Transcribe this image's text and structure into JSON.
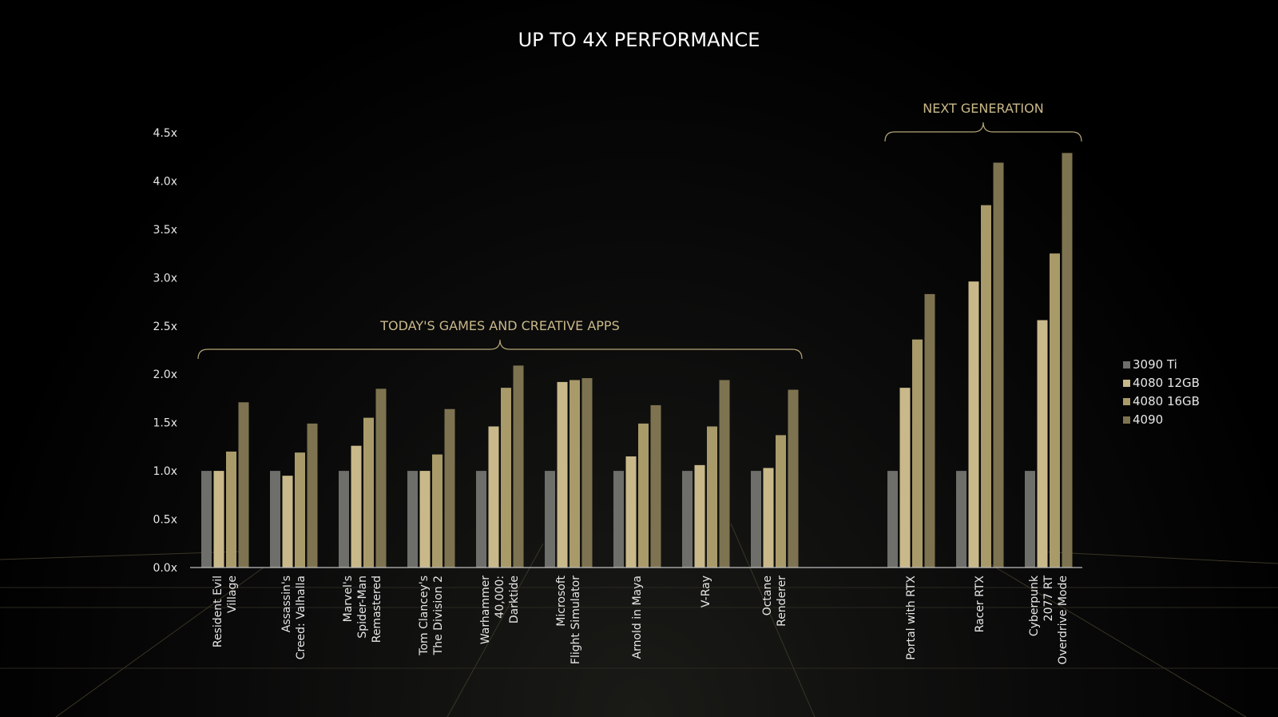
{
  "chart_data": {
    "type": "bar",
    "title": "UP TO 4X PERFORMANCE",
    "xlabel": "",
    "ylabel": "",
    "ylim": [
      0,
      4.5
    ],
    "y_ticks": [
      "0.0x",
      "0.5x",
      "1.0x",
      "1.5x",
      "2.0x",
      "2.5x",
      "3.0x",
      "3.5x",
      "4.0x",
      "4.5x"
    ],
    "legend_position": "right",
    "groups": [
      {
        "label": "TODAY'S GAMES AND CREATIVE APPS",
        "categories": [
          0,
          1,
          2,
          3,
          4,
          5,
          6,
          7,
          8
        ]
      },
      {
        "label": "NEXT GENERATION",
        "categories": [
          9,
          10,
          11
        ]
      }
    ],
    "categories": [
      [
        "Resident Evil",
        "Village"
      ],
      [
        "Assassin's",
        "Creed: Valhalla"
      ],
      [
        "Marvel's",
        "Spider-Man",
        "Remastered"
      ],
      [
        "Tom Clancey's",
        "The Division 2"
      ],
      [
        "Warhammer",
        "40,000:",
        "Darktide"
      ],
      [
        "Microsoft",
        "Flight Simulator"
      ],
      [
        "Arnold in Maya"
      ],
      [
        "V-Ray"
      ],
      [
        "Octane",
        "Renderer"
      ],
      [
        "Portal with RTX"
      ],
      [
        "Racer RTX"
      ],
      [
        "Cyberpunk",
        "2077 RT",
        "Overdrive Mode"
      ]
    ],
    "series": [
      {
        "name": "3090 Ti",
        "color": "#6e6e6a",
        "values": [
          1.0,
          1.0,
          1.0,
          1.0,
          1.0,
          1.0,
          1.0,
          1.0,
          1.0,
          1.0,
          1.0,
          1.0
        ]
      },
      {
        "name": "4080 12GB",
        "color": "#c9b98a",
        "values": [
          1.0,
          0.95,
          1.26,
          1.0,
          1.46,
          1.92,
          1.15,
          1.06,
          1.03,
          1.86,
          2.96,
          2.56
        ]
      },
      {
        "name": "4080 16GB",
        "color": "#a99a6a",
        "values": [
          1.2,
          1.19,
          1.55,
          1.17,
          1.86,
          1.94,
          1.49,
          1.46,
          1.37,
          2.36,
          3.75,
          3.25
        ]
      },
      {
        "name": "4090",
        "color": "#7e7350",
        "values": [
          1.71,
          1.49,
          1.85,
          1.64,
          2.09,
          1.96,
          1.68,
          1.94,
          1.84,
          2.83,
          4.19,
          4.29
        ]
      }
    ]
  }
}
